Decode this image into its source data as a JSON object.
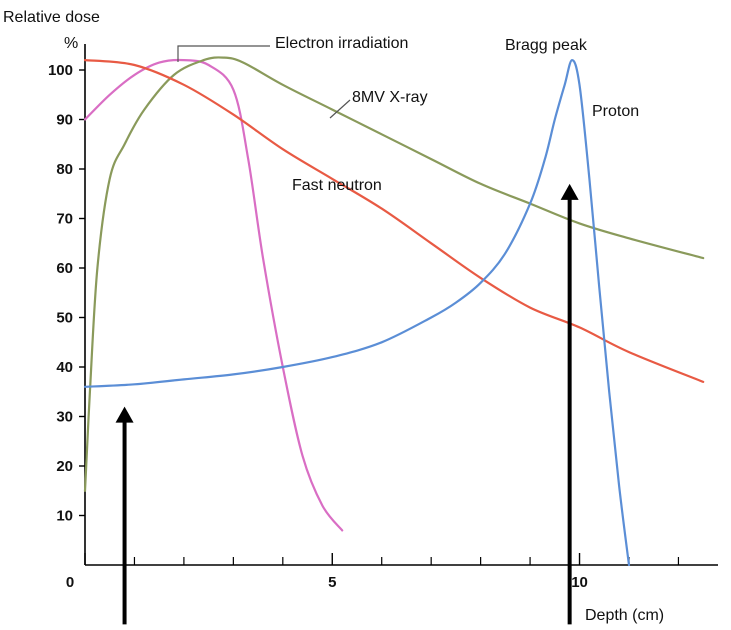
{
  "chart_data": {
    "type": "line",
    "title": "",
    "ylabel": "Relative dose",
    "yunit": "%",
    "xlabel": "Depth (cm)",
    "xlim": [
      0,
      12.8
    ],
    "ylim": [
      0,
      105
    ],
    "x_ticks": [
      0,
      5,
      10
    ],
    "x_minor_ticks": [
      1,
      2,
      3,
      4,
      6,
      7,
      8,
      9,
      11,
      12
    ],
    "y_ticks": [
      10,
      20,
      30,
      40,
      50,
      60,
      70,
      80,
      90,
      100
    ],
    "y_tick_labels": [
      "10",
      "20",
      "30",
      "40",
      "50",
      "60",
      "70",
      "80",
      "90",
      "100"
    ],
    "x_tick_labels": [
      "0",
      "5",
      "10"
    ],
    "grid": false,
    "series": [
      {
        "name": "Electron irradiation",
        "color": "#d96ec4",
        "x": [
          0,
          0.5,
          1.0,
          1.5,
          2.0,
          2.5,
          3.0,
          3.3,
          3.6,
          4.0,
          4.4,
          4.8,
          5.2
        ],
        "y": [
          90,
          95,
          99,
          101.5,
          102,
          101,
          96,
          82,
          62,
          40,
          22,
          12,
          7
        ]
      },
      {
        "name": "8MV X-ray",
        "color": "#8a9a5b",
        "x": [
          0,
          0.1,
          0.25,
          0.5,
          0.8,
          1.2,
          1.8,
          2.4,
          2.8,
          3.2,
          4,
          5,
          6,
          7,
          8,
          9,
          10,
          11,
          12.5
        ],
        "y": [
          15,
          35,
          60,
          78,
          85,
          92,
          99,
          102,
          102.5,
          101.5,
          97,
          92,
          87,
          82,
          77,
          73,
          69,
          66,
          62
        ]
      },
      {
        "name": "Fast neutron",
        "color": "#e85a44",
        "x": [
          0,
          1,
          2,
          3,
          4,
          5,
          6,
          7,
          8,
          9,
          10,
          11,
          12.5
        ],
        "y": [
          102,
          101,
          97,
          91,
          84,
          78,
          72,
          65,
          58,
          52,
          48,
          43,
          37
        ]
      },
      {
        "name": "Proton",
        "color": "#5b8ed6",
        "x": [
          0,
          1,
          2,
          3,
          4,
          5,
          6,
          7,
          7.5,
          8,
          8.5,
          9,
          9.3,
          9.5,
          9.7,
          9.85,
          10.0,
          10.2,
          10.4,
          10.6,
          10.8,
          11.0
        ],
        "y": [
          36,
          36.5,
          37.5,
          38.5,
          40,
          42,
          45,
          50,
          53,
          57,
          63,
          73,
          82,
          90,
          97,
          102,
          97,
          78,
          56,
          35,
          16,
          0
        ]
      }
    ],
    "annotations": [
      {
        "text": "Electron irradiation"
      },
      {
        "text": "8MV X-ray"
      },
      {
        "text": "Fast neutron"
      },
      {
        "text": "Bragg peak"
      },
      {
        "text": "Proton"
      }
    ],
    "arrows": [
      {
        "x": 0.8,
        "y_from": -12,
        "y_to": 32
      },
      {
        "x": 9.8,
        "y_from": -12,
        "y_to": 77
      }
    ]
  }
}
